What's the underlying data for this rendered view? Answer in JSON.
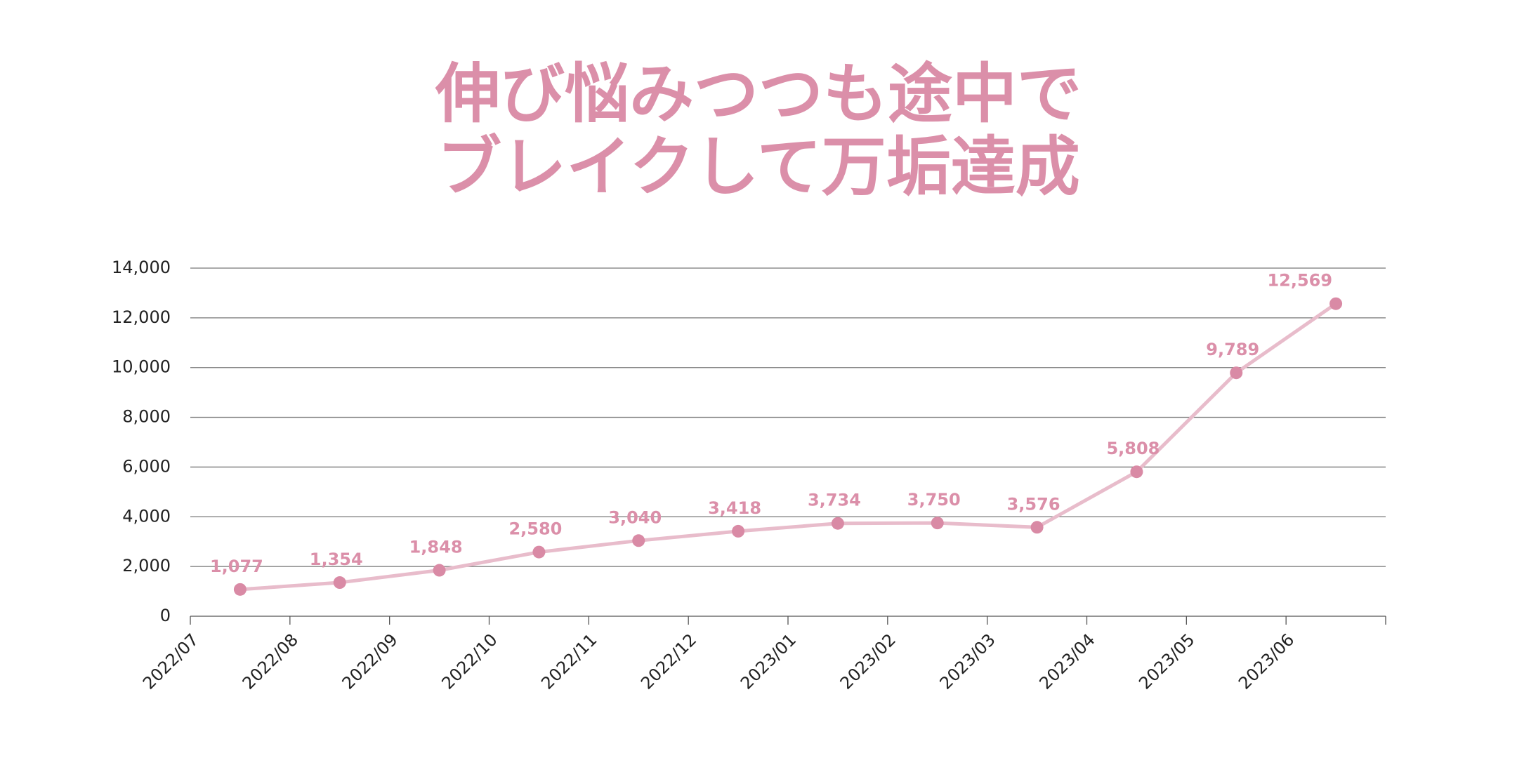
{
  "chart_data": {
    "type": "line",
    "title": [
      "伸び悩みつつも途中で",
      "ブレイクして万垢達成"
    ],
    "categories": [
      "2022/07",
      "2022/08",
      "2022/09",
      "2022/10",
      "2022/11",
      "2022/12",
      "2023/01",
      "2023/02",
      "2023/03",
      "2023/04",
      "2023/05",
      "2023/06"
    ],
    "series": [
      {
        "color": "#e8bccb",
        "marker_color": "#d98aa5",
        "values": [
          1077,
          1354,
          1848,
          2580,
          3040,
          3418,
          3734,
          3750,
          3576,
          5808,
          9789,
          12569
        ],
        "value_labels": [
          "1,077",
          "1,354",
          "1,848",
          "2,580",
          "3,040",
          "3,418",
          "3,734",
          "3,750",
          "3,576",
          "5,808",
          "9,789",
          "12,569"
        ]
      }
    ],
    "ylim": [
      0,
      14000
    ],
    "yticks": [
      0,
      {
        "value": 2000,
        "label": "2,000"
      },
      {
        "value": 4000,
        "label": "4,000"
      },
      {
        "value": 6000,
        "label": "6,000"
      },
      {
        "value": 8000,
        "label": "8,000"
      },
      {
        "value": 10000,
        "label": "10,000"
      },
      {
        "value": 12000,
        "label": "12,000"
      },
      {
        "value": 14000,
        "label": "14,000"
      }
    ],
    "grid": true
  }
}
